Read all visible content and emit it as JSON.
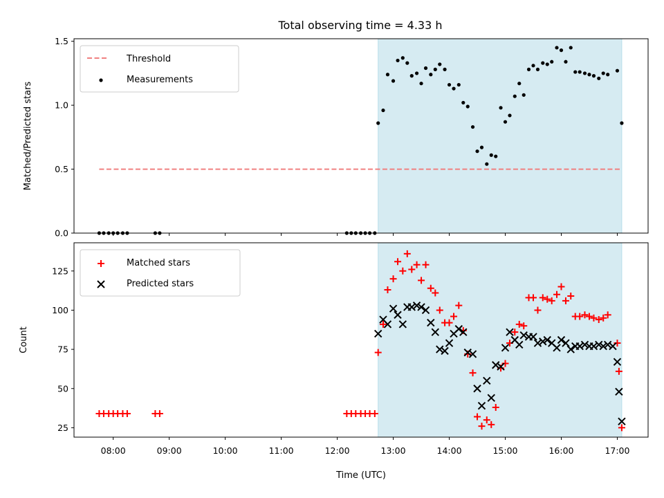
{
  "figure_title": "Total observing time = 4.33 h",
  "colors": {
    "threshold": "#f08080",
    "measurement": "#000000",
    "matched": "#ff0000",
    "predicted": "#000000",
    "span": "#add8e6"
  },
  "chart_data": [
    {
      "type": "scatter",
      "panel": "top",
      "ylabel": "Matched/Predicted stars",
      "xlim": [
        7.3,
        17.55
      ],
      "ylim": [
        0,
        1.52
      ],
      "yticks": [
        0,
        0.5,
        1.0,
        1.5
      ],
      "ytick_labels": [
        "0.0",
        "0.5",
        "1.0",
        "1.5"
      ],
      "grid": false,
      "legend": {
        "position": "top-left",
        "entries": [
          "Threshold",
          "Measurements"
        ]
      },
      "observing_span": [
        12.73,
        17.08
      ],
      "threshold": {
        "name": "Threshold",
        "y": 0.5,
        "x_range": [
          7.75,
          17.08
        ]
      },
      "series": [
        {
          "name": "Measurements",
          "marker": "dot",
          "points": [
            [
              7.75,
              0
            ],
            [
              7.83,
              0
            ],
            [
              7.92,
              0
            ],
            [
              8.0,
              0
            ],
            [
              8.08,
              0
            ],
            [
              8.17,
              0
            ],
            [
              8.25,
              0
            ],
            [
              8.75,
              0
            ],
            [
              8.83,
              0
            ],
            [
              12.17,
              0
            ],
            [
              12.25,
              0
            ],
            [
              12.33,
              0
            ],
            [
              12.42,
              0
            ],
            [
              12.5,
              0
            ],
            [
              12.58,
              0
            ],
            [
              12.67,
              0
            ],
            [
              12.73,
              0.86
            ],
            [
              12.82,
              0.96
            ],
            [
              12.9,
              1.24
            ],
            [
              13.0,
              1.19
            ],
            [
              13.08,
              1.35
            ],
            [
              13.17,
              1.37
            ],
            [
              13.25,
              1.33
            ],
            [
              13.33,
              1.23
            ],
            [
              13.42,
              1.25
            ],
            [
              13.5,
              1.17
            ],
            [
              13.58,
              1.29
            ],
            [
              13.67,
              1.24
            ],
            [
              13.75,
              1.28
            ],
            [
              13.83,
              1.32
            ],
            [
              13.92,
              1.28
            ],
            [
              14.0,
              1.16
            ],
            [
              14.08,
              1.13
            ],
            [
              14.17,
              1.16
            ],
            [
              14.25,
              1.02
            ],
            [
              14.33,
              0.99
            ],
            [
              14.42,
              0.83
            ],
            [
              14.5,
              0.64
            ],
            [
              14.58,
              0.67
            ],
            [
              14.67,
              0.54
            ],
            [
              14.75,
              0.61
            ],
            [
              14.83,
              0.6
            ],
            [
              14.92,
              0.98
            ],
            [
              15.0,
              0.87
            ],
            [
              15.08,
              0.92
            ],
            [
              15.17,
              1.07
            ],
            [
              15.25,
              1.17
            ],
            [
              15.33,
              1.08
            ],
            [
              15.42,
              1.28
            ],
            [
              15.5,
              1.31
            ],
            [
              15.58,
              1.28
            ],
            [
              15.67,
              1.33
            ],
            [
              15.75,
              1.32
            ],
            [
              15.83,
              1.34
            ],
            [
              15.92,
              1.45
            ],
            [
              16.0,
              1.43
            ],
            [
              16.08,
              1.34
            ],
            [
              16.17,
              1.45
            ],
            [
              16.25,
              1.26
            ],
            [
              16.33,
              1.26
            ],
            [
              16.42,
              1.25
            ],
            [
              16.5,
              1.24
            ],
            [
              16.58,
              1.23
            ],
            [
              16.67,
              1.21
            ],
            [
              16.75,
              1.25
            ],
            [
              16.83,
              1.24
            ],
            [
              17.0,
              1.27
            ],
            [
              17.08,
              0.86
            ]
          ]
        }
      ]
    },
    {
      "type": "scatter",
      "panel": "bottom",
      "xlabel": "Time (UTC)",
      "ylabel": "Count",
      "xlim": [
        7.3,
        17.55
      ],
      "ylim": [
        19,
        143
      ],
      "xticks": [
        8,
        9,
        10,
        11,
        12,
        13,
        14,
        15,
        16,
        17
      ],
      "xtick_labels": [
        "08:00",
        "09:00",
        "10:00",
        "11:00",
        "12:00",
        "13:00",
        "14:00",
        "15:00",
        "16:00",
        "17:00"
      ],
      "yticks": [
        25,
        50,
        75,
        100,
        125
      ],
      "ytick_labels": [
        "25",
        "50",
        "75",
        "100",
        "125"
      ],
      "grid": false,
      "legend": {
        "position": "top-left",
        "entries": [
          "Matched stars",
          "Predicted stars"
        ]
      },
      "observing_span": [
        12.73,
        17.08
      ],
      "series": [
        {
          "name": "Matched stars",
          "marker": "plus",
          "points": [
            [
              7.75,
              34
            ],
            [
              7.83,
              34
            ],
            [
              7.92,
              34
            ],
            [
              8.0,
              34
            ],
            [
              8.08,
              34
            ],
            [
              8.17,
              34
            ],
            [
              8.25,
              34
            ],
            [
              8.75,
              34
            ],
            [
              8.83,
              34
            ],
            [
              12.17,
              34
            ],
            [
              12.25,
              34
            ],
            [
              12.33,
              34
            ],
            [
              12.42,
              34
            ],
            [
              12.5,
              34
            ],
            [
              12.58,
              34
            ],
            [
              12.67,
              34
            ],
            [
              12.73,
              73
            ],
            [
              12.82,
              91
            ],
            [
              12.9,
              113
            ],
            [
              13.0,
              120
            ],
            [
              13.08,
              131
            ],
            [
              13.17,
              125
            ],
            [
              13.25,
              136
            ],
            [
              13.33,
              126
            ],
            [
              13.42,
              129
            ],
            [
              13.5,
              119
            ],
            [
              13.58,
              129
            ],
            [
              13.67,
              114
            ],
            [
              13.75,
              111
            ],
            [
              13.83,
              100
            ],
            [
              13.92,
              92
            ],
            [
              14.0,
              92
            ],
            [
              14.08,
              96
            ],
            [
              14.17,
              103
            ],
            [
              14.25,
              87
            ],
            [
              14.33,
              72
            ],
            [
              14.42,
              60
            ],
            [
              14.5,
              32
            ],
            [
              14.58,
              26
            ],
            [
              14.67,
              30
            ],
            [
              14.75,
              27
            ],
            [
              14.83,
              38
            ],
            [
              14.92,
              63
            ],
            [
              15.0,
              66
            ],
            [
              15.08,
              79
            ],
            [
              15.17,
              86
            ],
            [
              15.25,
              91
            ],
            [
              15.33,
              90
            ],
            [
              15.42,
              108
            ],
            [
              15.5,
              108
            ],
            [
              15.58,
              100
            ],
            [
              15.67,
              108
            ],
            [
              15.75,
              107
            ],
            [
              15.83,
              106
            ],
            [
              15.92,
              110
            ],
            [
              16.0,
              115
            ],
            [
              16.08,
              106
            ],
            [
              16.17,
              109
            ],
            [
              16.25,
              96
            ],
            [
              16.33,
              96
            ],
            [
              16.42,
              97
            ],
            [
              16.5,
              96
            ],
            [
              16.58,
              95
            ],
            [
              16.67,
              94
            ],
            [
              16.75,
              95
            ],
            [
              16.83,
              97
            ],
            [
              17.0,
              79
            ],
            [
              17.03,
              61
            ],
            [
              17.08,
              25
            ]
          ]
        },
        {
          "name": "Predicted stars",
          "marker": "x",
          "points": [
            [
              12.73,
              85
            ],
            [
              12.82,
              94
            ],
            [
              12.9,
              91
            ],
            [
              13.0,
              101
            ],
            [
              13.08,
              97
            ],
            [
              13.17,
              91
            ],
            [
              13.25,
              102
            ],
            [
              13.33,
              102
            ],
            [
              13.42,
              103
            ],
            [
              13.5,
              102
            ],
            [
              13.58,
              100
            ],
            [
              13.67,
              92
            ],
            [
              13.75,
              86
            ],
            [
              13.83,
              75
            ],
            [
              13.92,
              74
            ],
            [
              14.0,
              79
            ],
            [
              14.08,
              85
            ],
            [
              14.17,
              88
            ],
            [
              14.25,
              86
            ],
            [
              14.33,
              73
            ],
            [
              14.42,
              72
            ],
            [
              14.5,
              50
            ],
            [
              14.58,
              39
            ],
            [
              14.67,
              55
            ],
            [
              14.75,
              44
            ],
            [
              14.83,
              65
            ],
            [
              14.92,
              64
            ],
            [
              15.0,
              76
            ],
            [
              15.08,
              86
            ],
            [
              15.17,
              81
            ],
            [
              15.25,
              78
            ],
            [
              15.33,
              84
            ],
            [
              15.42,
              83
            ],
            [
              15.5,
              83
            ],
            [
              15.58,
              79
            ],
            [
              15.67,
              80
            ],
            [
              15.75,
              81
            ],
            [
              15.83,
              79
            ],
            [
              15.92,
              76
            ],
            [
              16.0,
              81
            ],
            [
              16.08,
              79
            ],
            [
              16.17,
              75
            ],
            [
              16.25,
              77
            ],
            [
              16.33,
              77
            ],
            [
              16.42,
              78
            ],
            [
              16.5,
              77
            ],
            [
              16.58,
              77
            ],
            [
              16.67,
              78
            ],
            [
              16.75,
              77
            ],
            [
              16.83,
              78
            ],
            [
              16.92,
              77
            ],
            [
              17.0,
              67
            ],
            [
              17.03,
              48
            ],
            [
              17.08,
              29
            ]
          ]
        }
      ]
    }
  ]
}
